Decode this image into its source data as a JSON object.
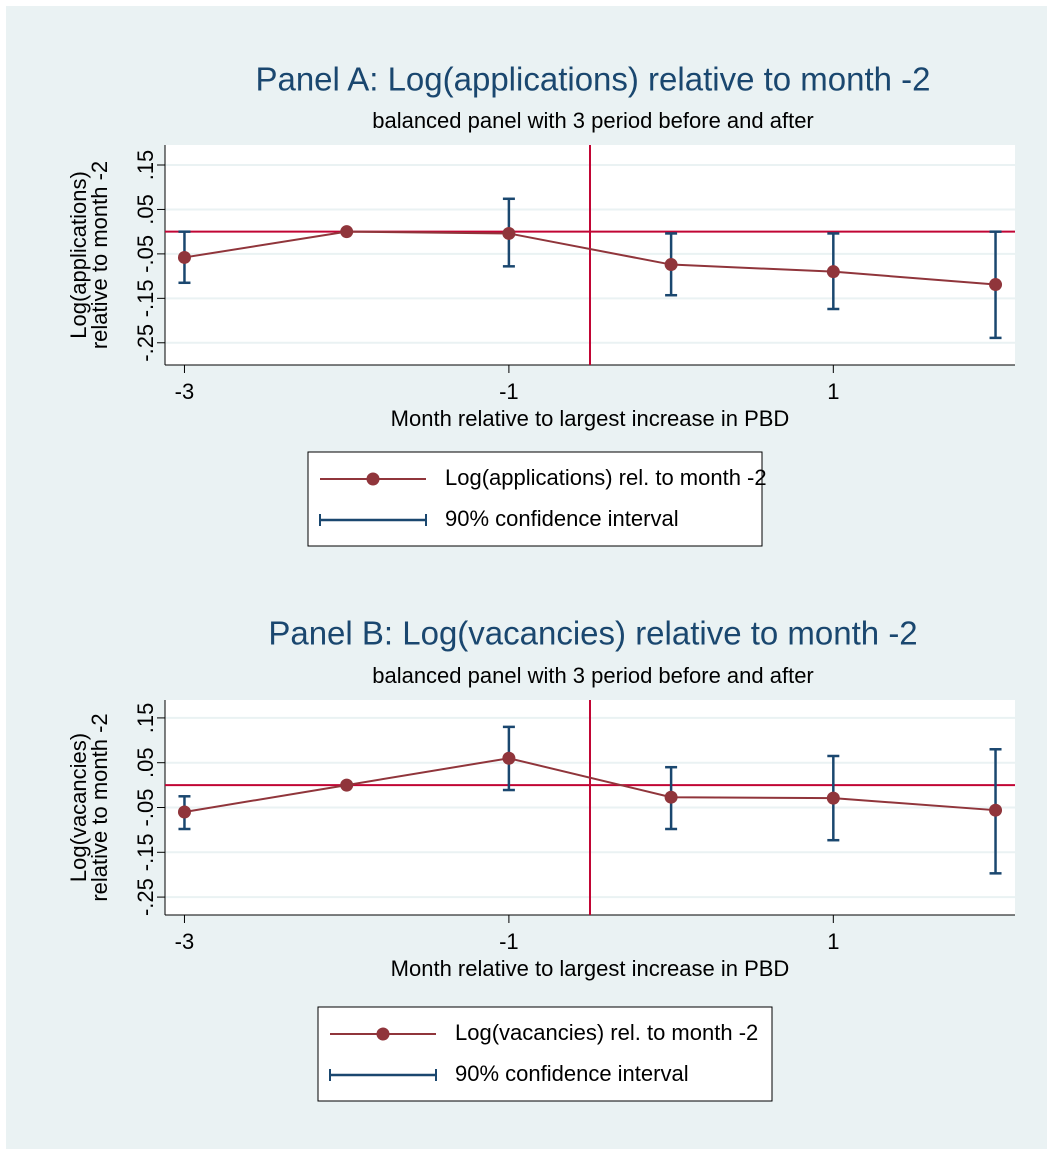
{
  "chart_data": [
    {
      "type": "line",
      "title": "Panel A: Log(applications) relative to month -2",
      "subtitle": "balanced panel with 3 period before and after",
      "xlabel": "Month relative to largest increase in PBD",
      "ylabel": [
        "Log(applications)",
        "relative to month -2"
      ],
      "x": [
        -3,
        -2,
        -1,
        0,
        1,
        2
      ],
      "series": [
        {
          "name": "Log(applications) rel. to month -2",
          "color": "#90353b",
          "values": [
            -0.058,
            0,
            -0.004,
            -0.074,
            -0.09,
            -0.119
          ]
        }
      ],
      "error_bars": {
        "name": "90% confidence interval",
        "color": "#1a476f",
        "low": [
          -0.115,
          null,
          -0.078,
          -0.143,
          -0.174,
          -0.239
        ],
        "high": [
          0.0,
          null,
          0.074,
          -0.004,
          -0.004,
          0.0
        ]
      },
      "xlim": [
        -3.12,
        2.12
      ],
      "ylim": [
        -0.3,
        0.195
      ],
      "xticks": [
        -3,
        -1,
        1
      ],
      "yticks": [
        {
          "value": -0.25,
          "label": "-.25"
        },
        {
          "value": -0.15,
          "label": "-.15"
        },
        {
          "value": -0.05,
          "label": "-.05"
        },
        {
          "value": 0.05,
          "label": ".05"
        },
        {
          "value": 0.15,
          "label": ".15"
        }
      ],
      "grid": true,
      "hline": 0,
      "vline": -0.5,
      "ref_color": "#c10534",
      "legend": "bottom"
    },
    {
      "type": "line",
      "title": "Panel B: Log(vacancies) relative to month -2",
      "subtitle": "balanced panel with 3 period before and after",
      "xlabel": "Month relative to largest increase in PBD",
      "ylabel": [
        "Log(vacancies)",
        "relative to month -2"
      ],
      "x": [
        -3,
        -2,
        -1,
        0,
        1,
        2
      ],
      "series": [
        {
          "name": "Log(vacancies) rel. to month -2",
          "color": "#90353b",
          "values": [
            -0.06,
            0,
            0.06,
            -0.027,
            -0.029,
            -0.056
          ]
        }
      ],
      "error_bars": {
        "name": "90% confidence interval",
        "color": "#1a476f",
        "low": [
          -0.098,
          null,
          -0.011,
          -0.098,
          -0.123,
          -0.197
        ],
        "high": [
          -0.025,
          null,
          0.13,
          0.04,
          0.065,
          0.08
        ]
      },
      "xlim": [
        -3.12,
        2.12
      ],
      "ylim": [
        -0.29,
        0.19
      ],
      "xticks": [
        -3,
        -1,
        1
      ],
      "yticks": [
        {
          "value": -0.25,
          "label": "-.25"
        },
        {
          "value": -0.15,
          "label": "-.15"
        },
        {
          "value": -0.05,
          "label": "-.05"
        },
        {
          "value": 0.05,
          "label": ".05"
        },
        {
          "value": 0.15,
          "label": ".15"
        }
      ],
      "grid": true,
      "hline": 0,
      "vline": -0.5,
      "ref_color": "#c10534",
      "legend": "bottom"
    }
  ]
}
